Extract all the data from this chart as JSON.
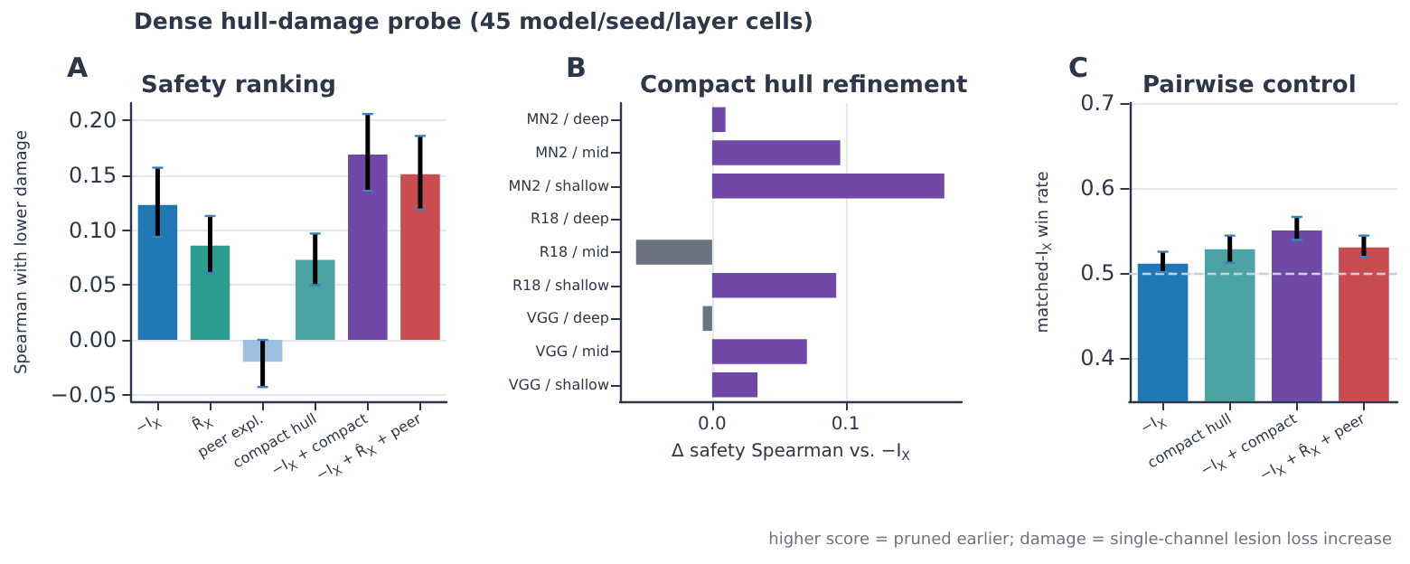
{
  "chart_data": [
    {
      "type": "bar",
      "title": "Safety ranking",
      "ylabel": "Spearman with lower damage",
      "annotations": [
        "A",
        "Dense hull-damage probe (45 model/seed/layer cells)"
      ],
      "categories": [
        "−I$_{X}$",
        "R̂$_{X}$",
        "peer expl.",
        "compact hull",
        "−I$_{X}$ + compact",
        "−I$_{X}$ + R̂$_{X}$ + peer"
      ],
      "values": [
        0.123,
        0.086,
        -0.02,
        0.073,
        0.169,
        0.151
      ],
      "colors": [
        "#1f77b4",
        "#2a9d8f",
        "#9ec0e0",
        "#4ba3a3",
        "#6f48a8",
        "#c84c50"
      ],
      "errors": [
        [
          0.094,
          0.157
        ],
        [
          0.061,
          0.113
        ],
        [
          -0.043,
          0.0
        ],
        [
          0.05,
          0.097
        ],
        [
          0.136,
          0.206
        ],
        [
          0.119,
          0.186
        ]
      ],
      "ylim": [
        -0.056,
        0.216
      ],
      "yticks": [
        {
          "value": -0.05,
          "label": "−0.05"
        },
        {
          "value": 0,
          "label": "0.00"
        },
        {
          "value": 0.05,
          "label": "0.05"
        },
        {
          "value": 0.1,
          "label": "0.10"
        },
        {
          "value": 0.15,
          "label": "0.15"
        },
        {
          "value": 0.2,
          "label": "0.20"
        }
      ],
      "grid": "y"
    },
    {
      "type": "bar",
      "orientation": "horizontal",
      "title": "Compact hull refinement",
      "xlabel": "Δ safety Spearman vs. −I$_{X}$",
      "annotations": [
        "B"
      ],
      "categories": [
        "MN2 / deep",
        "MN2 / mid",
        "MN2 / shallow",
        "R18 / deep",
        "R18 / mid",
        "R18 / shallow",
        "VGG / deep",
        "VGG / mid",
        "VGG / shallow"
      ],
      "values": [
        0.01,
        0.096,
        0.174,
        0,
        -0.057,
        0.093,
        -0.007,
        0.071,
        0.034
      ],
      "colors": [
        "#6f48a8",
        "#6f48a8",
        "#6f48a8",
        "#6f48a8",
        "#6b7280",
        "#6f48a8",
        "#6b7280",
        "#6f48a8",
        "#6f48a8"
      ],
      "xlim": [
        -0.069,
        0.187
      ],
      "xticks": [
        {
          "value": 0,
          "label": "0.0"
        },
        0.1
      ],
      "grid": "x"
    },
    {
      "type": "bar",
      "title": "Pairwise control",
      "ylabel": "matched-I$_{X}$ win rate",
      "annotations": [
        "C",
        "higher score = pruned earlier; damage = single-channel lesion loss increase"
      ],
      "categories": [
        "−I$_{X}$",
        "compact hull",
        "−I$_{X}$ + compact",
        "−I$_{X}$ + R̂$_{X}$ + peer"
      ],
      "values": [
        0.511,
        0.528,
        0.55,
        0.53
      ],
      "colors": [
        "#1f77b4",
        "#4ba3a3",
        "#6f48a8",
        "#c84c50"
      ],
      "errors": [
        [
          0.501,
          0.525
        ],
        [
          0.512,
          0.544
        ],
        [
          0.539,
          0.566
        ],
        [
          0.519,
          0.544
        ]
      ],
      "ylim": [
        0.349,
        0.7
      ],
      "yticks": [
        0.4,
        0.5,
        0.6,
        0.7
      ],
      "ref_lines": [
        {
          "axis": "y",
          "value": 0.5,
          "color": "#c8d0e0",
          "line_style": "dashed"
        }
      ],
      "grid": "y"
    }
  ]
}
